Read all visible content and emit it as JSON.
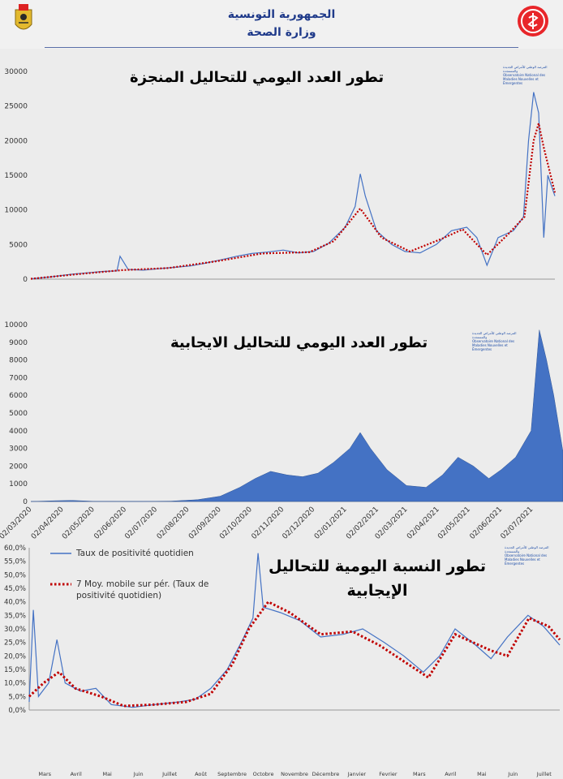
{
  "header": {
    "title_line1": "الجمهورية التونسية",
    "title_line2": "وزارة الصحة",
    "logo_left": "tunisia-coat-of-arms",
    "logo_right": "ministry-of-health-logo"
  },
  "observatory_logo": {
    "line1": "المرصد الوطني للأمراض الجديدة والمستجدة",
    "line2": "Observatoire National des Maladies Nouvelles et Émergentes"
  },
  "colors": {
    "series_blue": "#4472c4",
    "moving_avg_red": "#c00000",
    "area_fill": "#4472c4"
  },
  "chart_data": [
    {
      "type": "line",
      "title": "تطور العدد اليومي للتحاليل المنجزة",
      "ylim": [
        0,
        30000
      ],
      "yticks": [
        "30000",
        "25000",
        "20000",
        "15000",
        "10000",
        "5000",
        "0"
      ],
      "x_start": "2020-03-01",
      "x_end": "2021-07-31",
      "grid": false,
      "series": [
        {
          "kind": "daily",
          "points": [
            [
              "2020-03-01",
              50
            ],
            [
              "2020-03-20",
              300
            ],
            [
              "2020-04-10",
              700
            ],
            [
              "2020-04-25",
              900
            ],
            [
              "2020-05-10",
              1100
            ],
            [
              "2020-05-25",
              1200
            ],
            [
              "2020-05-28",
              3300
            ],
            [
              "2020-06-05",
              1400
            ],
            [
              "2020-06-20",
              1300
            ],
            [
              "2020-07-05",
              1500
            ],
            [
              "2020-07-20",
              1700
            ],
            [
              "2020-08-05",
              1900
            ],
            [
              "2020-08-20",
              2300
            ],
            [
              "2020-09-05",
              2800
            ],
            [
              "2020-09-20",
              3300
            ],
            [
              "2020-10-05",
              3700
            ],
            [
              "2020-10-20",
              3900
            ],
            [
              "2020-11-05",
              4200
            ],
            [
              "2020-11-20",
              3800
            ],
            [
              "2020-12-05",
              4000
            ],
            [
              "2020-12-20",
              5200
            ],
            [
              "2021-01-05",
              7500
            ],
            [
              "2021-01-15",
              10500
            ],
            [
              "2021-01-20",
              15200
            ],
            [
              "2021-01-25",
              12000
            ],
            [
              "2021-02-05",
              7000
            ],
            [
              "2021-02-20",
              5000
            ],
            [
              "2021-03-05",
              4000
            ],
            [
              "2021-03-20",
              3800
            ],
            [
              "2021-04-05",
              5000
            ],
            [
              "2021-04-20",
              7000
            ],
            [
              "2021-05-05",
              7500
            ],
            [
              "2021-05-15",
              6000
            ],
            [
              "2021-05-25",
              2000
            ],
            [
              "2021-06-05",
              6000
            ],
            [
              "2021-06-20",
              7000
            ],
            [
              "2021-06-30",
              9000
            ],
            [
              "2021-07-05",
              20000
            ],
            [
              "2021-07-10",
              27000
            ],
            [
              "2021-07-15",
              24000
            ],
            [
              "2021-07-20",
              6000
            ],
            [
              "2021-07-24",
              15000
            ],
            [
              "2021-07-31",
              12000
            ]
          ]
        },
        {
          "kind": "moving_average_7",
          "points": [
            [
              "2020-03-01",
              50
            ],
            [
              "2020-04-15",
              700
            ],
            [
              "2020-05-30",
              1300
            ],
            [
              "2020-07-15",
              1600
            ],
            [
              "2020-09-01",
              2600
            ],
            [
              "2020-10-15",
              3700
            ],
            [
              "2020-12-01",
              3900
            ],
            [
              "2020-12-25",
              5500
            ],
            [
              "2021-01-20",
              10200
            ],
            [
              "2021-02-10",
              6000
            ],
            [
              "2021-03-10",
              4000
            ],
            [
              "2021-04-10",
              5800
            ],
            [
              "2021-05-01",
              7200
            ],
            [
              "2021-05-25",
              3500
            ],
            [
              "2021-06-15",
              6500
            ],
            [
              "2021-07-01",
              9000
            ],
            [
              "2021-07-10",
              20000
            ],
            [
              "2021-07-15",
              22500
            ],
            [
              "2021-07-20",
              19000
            ],
            [
              "2021-07-31",
              12500
            ]
          ]
        }
      ]
    },
    {
      "type": "area",
      "title": "تطور العدد اليومي للتحاليل الايجابية",
      "ylim": [
        0,
        10000
      ],
      "yticks": [
        "10000",
        "9000",
        "8000",
        "7000",
        "6000",
        "5000",
        "4000",
        "3000",
        "2000",
        "1000",
        "0"
      ],
      "xticks": [
        "02/03/2020",
        "02/04/2020",
        "02/05/2020",
        "02/06/2020",
        "02/07/2020",
        "02/08/2020",
        "02/09/2020",
        "02/10/2020",
        "02/11/2020",
        "02/12/2020",
        "02/01/2021",
        "02/02/2021",
        "02/03/2021",
        "02/04/2021",
        "02/05/2021",
        "02/06/2021",
        "02/07/2021"
      ],
      "x_start": "2020-03-01",
      "x_end": "2021-07-31",
      "grid": false,
      "points": [
        [
          "2020-03-01",
          0
        ],
        [
          "2020-03-25",
          40
        ],
        [
          "2020-04-10",
          60
        ],
        [
          "2020-05-01",
          10
        ],
        [
          "2020-06-15",
          5
        ],
        [
          "2020-07-15",
          20
        ],
        [
          "2020-08-10",
          100
        ],
        [
          "2020-09-01",
          300
        ],
        [
          "2020-09-20",
          800
        ],
        [
          "2020-10-05",
          1300
        ],
        [
          "2020-10-20",
          1700
        ],
        [
          "2020-11-05",
          1500
        ],
        [
          "2020-11-20",
          1400
        ],
        [
          "2020-12-05",
          1600
        ],
        [
          "2020-12-20",
          2200
        ],
        [
          "2021-01-05",
          3000
        ],
        [
          "2021-01-15",
          3900
        ],
        [
          "2021-01-25",
          3000
        ],
        [
          "2021-02-10",
          1800
        ],
        [
          "2021-03-01",
          900
        ],
        [
          "2021-03-20",
          800
        ],
        [
          "2021-04-05",
          1500
        ],
        [
          "2021-04-20",
          2500
        ],
        [
          "2021-05-05",
          2000
        ],
        [
          "2021-05-20",
          1300
        ],
        [
          "2021-06-01",
          1800
        ],
        [
          "2021-06-15",
          2500
        ],
        [
          "2021-06-30",
          4000
        ],
        [
          "2021-07-08",
          9700
        ],
        [
          "2021-07-15",
          8000
        ],
        [
          "2021-07-22",
          6000
        ],
        [
          "2021-07-31",
          2800
        ]
      ]
    },
    {
      "type": "line",
      "title": "تطور النسبة اليومية للتحاليل الإيجابية",
      "ylim": [
        0,
        60
      ],
      "yticks": [
        "60,0%",
        "55,0%",
        "50,0%",
        "45,0%",
        "40,0%",
        "35,0%",
        "30,0%",
        "25,0%",
        "20,0%",
        "15,0%",
        "10,0%",
        "5,0%",
        "0,0%"
      ],
      "month_labels": [
        "Mars",
        "Avril",
        "Mai",
        "Juin",
        "Juillet",
        "Août",
        "Septembre",
        "Octobre",
        "Novembre",
        "Décembre",
        "Janvier",
        "Fevrier",
        "Mars",
        "Avril",
        "Mai",
        "Juin",
        "Juillet"
      ],
      "x_start": "2020-03-01",
      "x_end": "2021-07-31",
      "grid": false,
      "legend_position": "top-left",
      "series": [
        {
          "name": "Taux de positivité quotidien",
          "points": [
            [
              "2020-03-01",
              3
            ],
            [
              "2020-03-05",
              37
            ],
            [
              "2020-03-10",
              5
            ],
            [
              "2020-03-20",
              10
            ],
            [
              "2020-03-28",
              26
            ],
            [
              "2020-04-05",
              10
            ],
            [
              "2020-04-20",
              7
            ],
            [
              "2020-05-05",
              8
            ],
            [
              "2020-05-20",
              2
            ],
            [
              "2020-06-10",
              1
            ],
            [
              "2020-07-01",
              2
            ],
            [
              "2020-07-25",
              3
            ],
            [
              "2020-08-10",
              4
            ],
            [
              "2020-08-25",
              8
            ],
            [
              "2020-09-10",
              15
            ],
            [
              "2020-09-25",
              26
            ],
            [
              "2020-10-05",
              34
            ],
            [
              "2020-10-10",
              58
            ],
            [
              "2020-10-15",
              38
            ],
            [
              "2020-11-01",
              36
            ],
            [
              "2020-11-20",
              33
            ],
            [
              "2020-12-10",
              27
            ],
            [
              "2021-01-01",
              28
            ],
            [
              "2021-01-20",
              30
            ],
            [
              "2021-02-10",
              25
            ],
            [
              "2021-03-01",
              20
            ],
            [
              "2021-03-20",
              14
            ],
            [
              "2021-04-05",
              20
            ],
            [
              "2021-04-20",
              30
            ],
            [
              "2021-05-10",
              24
            ],
            [
              "2021-05-25",
              19
            ],
            [
              "2021-06-10",
              27
            ],
            [
              "2021-06-30",
              35
            ],
            [
              "2021-07-15",
              31
            ],
            [
              "2021-07-31",
              24
            ]
          ]
        },
        {
          "name": "7 Moy. mobile sur pér. (Taux de positivité quotidien)",
          "points": [
            [
              "2020-03-01",
              5
            ],
            [
              "2020-03-15",
              10
            ],
            [
              "2020-03-30",
              14
            ],
            [
              "2020-04-15",
              8
            ],
            [
              "2020-05-10",
              5
            ],
            [
              "2020-06-01",
              1.5
            ],
            [
              "2020-07-01",
              2
            ],
            [
              "2020-08-01",
              3
            ],
            [
              "2020-08-25",
              6
            ],
            [
              "2020-09-15",
              17
            ],
            [
              "2020-10-01",
              30
            ],
            [
              "2020-10-20",
              40
            ],
            [
              "2020-11-10",
              36
            ],
            [
              "2020-12-10",
              28
            ],
            [
              "2021-01-10",
              29
            ],
            [
              "2021-02-05",
              24
            ],
            [
              "2021-03-01",
              18
            ],
            [
              "2021-03-25",
              12
            ],
            [
              "2021-04-20",
              28
            ],
            [
              "2021-05-25",
              22
            ],
            [
              "2021-06-10",
              20
            ],
            [
              "2021-07-01",
              34
            ],
            [
              "2021-07-20",
              31
            ],
            [
              "2021-07-31",
              26
            ]
          ]
        }
      ]
    }
  ]
}
